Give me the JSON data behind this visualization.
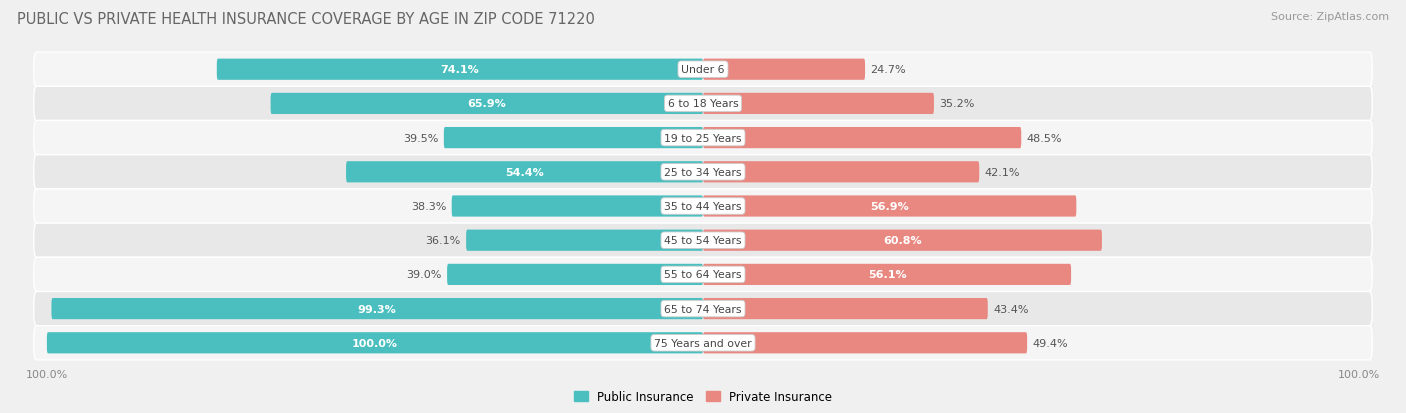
{
  "title": "PUBLIC VS PRIVATE HEALTH INSURANCE COVERAGE BY AGE IN ZIP CODE 71220",
  "source": "Source: ZipAtlas.com",
  "categories": [
    "Under 6",
    "6 to 18 Years",
    "19 to 25 Years",
    "25 to 34 Years",
    "35 to 44 Years",
    "45 to 54 Years",
    "55 to 64 Years",
    "65 to 74 Years",
    "75 Years and over"
  ],
  "public_values": [
    74.1,
    65.9,
    39.5,
    54.4,
    38.3,
    36.1,
    39.0,
    99.3,
    100.0
  ],
  "private_values": [
    24.7,
    35.2,
    48.5,
    42.1,
    56.9,
    60.8,
    56.1,
    43.4,
    49.4
  ],
  "public_color": "#4BBFBF",
  "private_color": "#E88880",
  "row_bg_light": "#F5F5F5",
  "row_bg_dark": "#E8E8E8",
  "bg_color": "#F0F0F0",
  "bar_height": 0.62,
  "title_fontsize": 10.5,
  "label_fontsize": 8,
  "category_fontsize": 7.8,
  "legend_fontsize": 8.5,
  "source_fontsize": 8,
  "pub_label_white_threshold": 50,
  "priv_label_white_threshold": 55
}
